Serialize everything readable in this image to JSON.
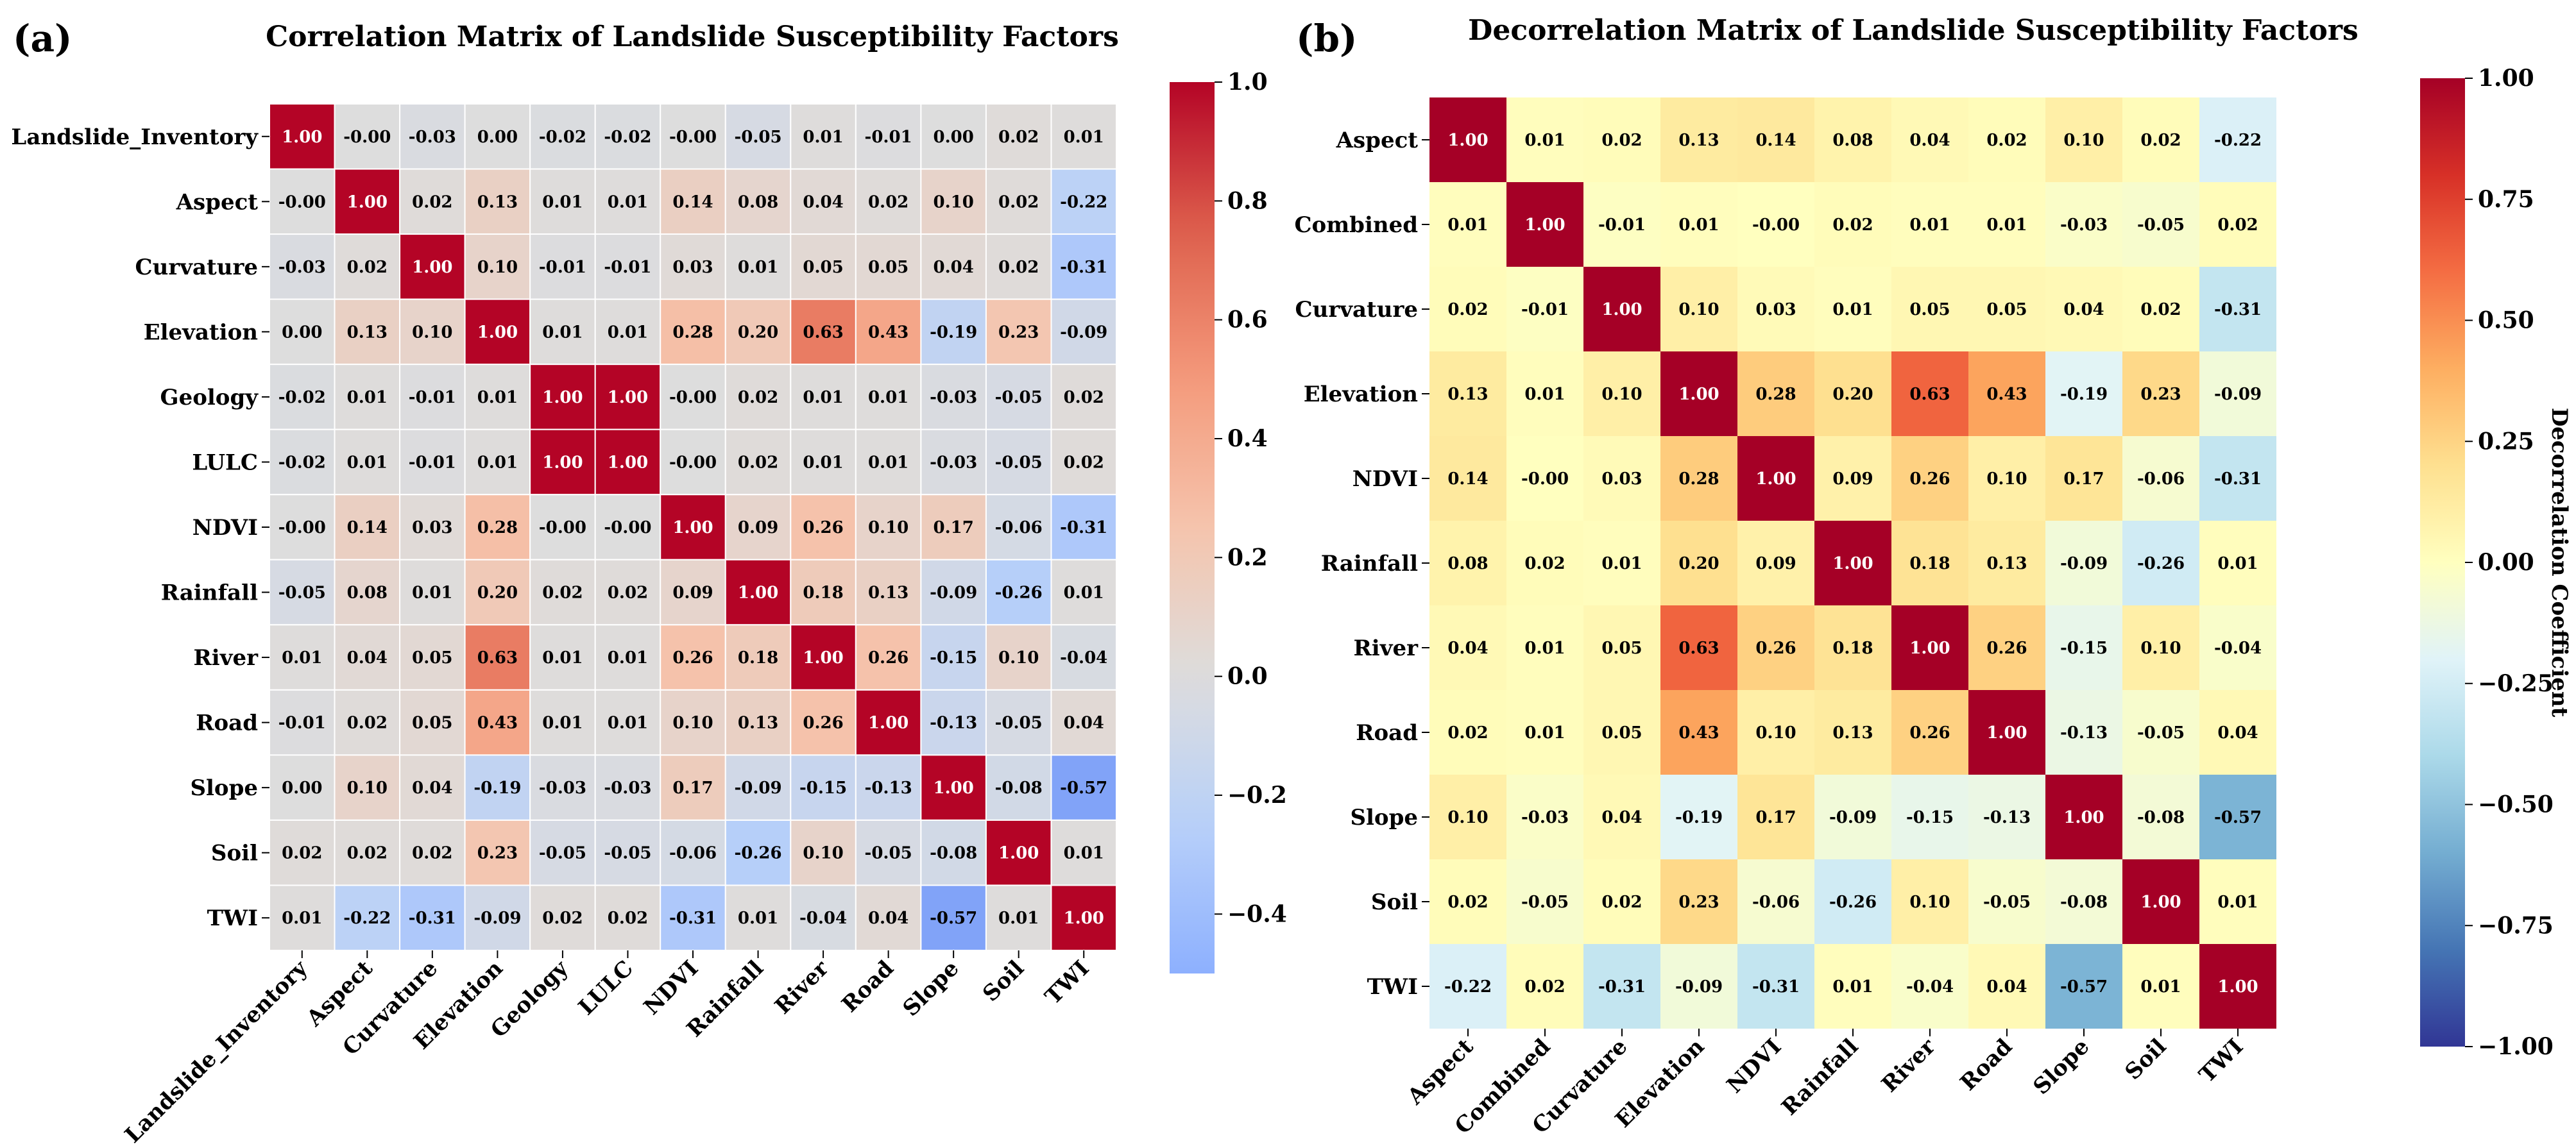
{
  "chart_data": [
    {
      "type": "heatmap",
      "panel_label": "(a)",
      "title": "Correlation Matrix of Landslide Susceptibility Factors",
      "colormap": "coolwarm",
      "vmin": -0.5,
      "vmax": 1.0,
      "colorbar_ticks": [
        "1.0",
        "0.8",
        "0.6",
        "0.4",
        "0.2",
        "0.0",
        "−0.2",
        "−0.4"
      ],
      "colorbar_tick_values": [
        1.0,
        0.8,
        0.6,
        0.4,
        0.2,
        0.0,
        -0.2,
        -0.4
      ],
      "colorbar_label": "",
      "labels": [
        "Landslide_Inventory",
        "Aspect",
        "Curvature",
        "Elevation",
        "Geology",
        "LULC",
        "NDVI",
        "Rainfall",
        "River",
        "Road",
        "Slope",
        "Soil",
        "TWI"
      ],
      "cell_text": [
        [
          "1.00",
          "-0.00",
          "-0.03",
          "0.00",
          "-0.02",
          "-0.02",
          "-0.00",
          "-0.05",
          "0.01",
          "-0.01",
          "0.00",
          "0.02",
          "0.01"
        ],
        [
          "-0.00",
          "1.00",
          "0.02",
          "0.13",
          "0.01",
          "0.01",
          "0.14",
          "0.08",
          "0.04",
          "0.02",
          "0.10",
          "0.02",
          "-0.22"
        ],
        [
          "-0.03",
          "0.02",
          "1.00",
          "0.10",
          "-0.01",
          "-0.01",
          "0.03",
          "0.01",
          "0.05",
          "0.05",
          "0.04",
          "0.02",
          "-0.31"
        ],
        [
          "0.00",
          "0.13",
          "0.10",
          "1.00",
          "0.01",
          "0.01",
          "0.28",
          "0.20",
          "0.63",
          "0.43",
          "-0.19",
          "0.23",
          "-0.09"
        ],
        [
          "-0.02",
          "0.01",
          "-0.01",
          "0.01",
          "1.00",
          "1.00",
          "-0.00",
          "0.02",
          "0.01",
          "0.01",
          "-0.03",
          "-0.05",
          "0.02"
        ],
        [
          "-0.02",
          "0.01",
          "-0.01",
          "0.01",
          "1.00",
          "1.00",
          "-0.00",
          "0.02",
          "0.01",
          "0.01",
          "-0.03",
          "-0.05",
          "0.02"
        ],
        [
          "-0.00",
          "0.14",
          "0.03",
          "0.28",
          "-0.00",
          "-0.00",
          "1.00",
          "0.09",
          "0.26",
          "0.10",
          "0.17",
          "-0.06",
          "-0.31"
        ],
        [
          "-0.05",
          "0.08",
          "0.01",
          "0.20",
          "0.02",
          "0.02",
          "0.09",
          "1.00",
          "0.18",
          "0.13",
          "-0.09",
          "-0.26",
          "0.01"
        ],
        [
          "0.01",
          "0.04",
          "0.05",
          "0.63",
          "0.01",
          "0.01",
          "0.26",
          "0.18",
          "1.00",
          "0.26",
          "-0.15",
          "0.10",
          "-0.04"
        ],
        [
          "-0.01",
          "0.02",
          "0.05",
          "0.43",
          "0.01",
          "0.01",
          "0.10",
          "0.13",
          "0.26",
          "1.00",
          "-0.13",
          "-0.05",
          "0.04"
        ],
        [
          "0.00",
          "0.10",
          "0.04",
          "-0.19",
          "-0.03",
          "-0.03",
          "0.17",
          "-0.09",
          "-0.15",
          "-0.13",
          "1.00",
          "-0.08",
          "-0.57"
        ],
        [
          "0.02",
          "0.02",
          "0.02",
          "0.23",
          "-0.05",
          "-0.05",
          "-0.06",
          "-0.26",
          "0.10",
          "-0.05",
          "-0.08",
          "1.00",
          "0.01"
        ],
        [
          "0.01",
          "-0.22",
          "-0.31",
          "-0.09",
          "0.02",
          "0.02",
          "-0.31",
          "0.01",
          "-0.04",
          "0.04",
          "-0.57",
          "0.01",
          "1.00"
        ]
      ]
    },
    {
      "type": "heatmap",
      "panel_label": "(b)",
      "title": "Decorrelation Matrix of Landslide Susceptibility Factors",
      "colormap": "RdYlBu_r",
      "vmin": -1.0,
      "vmax": 1.0,
      "colorbar_ticks": [
        "1.00",
        "0.75",
        "0.50",
        "0.25",
        "0.00",
        "−0.25",
        "−0.50",
        "−0.75",
        "−1.00"
      ],
      "colorbar_tick_values": [
        1.0,
        0.75,
        0.5,
        0.25,
        0.0,
        -0.25,
        -0.5,
        -0.75,
        -1.0
      ],
      "colorbar_label": "Decorrelation Coefficient",
      "labels": [
        "Aspect",
        "Combined",
        "Curvature",
        "Elevation",
        "NDVI",
        "Rainfall",
        "River",
        "Road",
        "Slope",
        "Soil",
        "TWI"
      ],
      "cell_text": [
        [
          "1.00",
          "0.01",
          "0.02",
          "0.13",
          "0.14",
          "0.08",
          "0.04",
          "0.02",
          "0.10",
          "0.02",
          "-0.22"
        ],
        [
          "0.01",
          "1.00",
          "-0.01",
          "0.01",
          "-0.00",
          "0.02",
          "0.01",
          "0.01",
          "-0.03",
          "-0.05",
          "0.02"
        ],
        [
          "0.02",
          "-0.01",
          "1.00",
          "0.10",
          "0.03",
          "0.01",
          "0.05",
          "0.05",
          "0.04",
          "0.02",
          "-0.31"
        ],
        [
          "0.13",
          "0.01",
          "0.10",
          "1.00",
          "0.28",
          "0.20",
          "0.63",
          "0.43",
          "-0.19",
          "0.23",
          "-0.09"
        ],
        [
          "0.14",
          "-0.00",
          "0.03",
          "0.28",
          "1.00",
          "0.09",
          "0.26",
          "0.10",
          "0.17",
          "-0.06",
          "-0.31"
        ],
        [
          "0.08",
          "0.02",
          "0.01",
          "0.20",
          "0.09",
          "1.00",
          "0.18",
          "0.13",
          "-0.09",
          "-0.26",
          "0.01"
        ],
        [
          "0.04",
          "0.01",
          "0.05",
          "0.63",
          "0.26",
          "0.18",
          "1.00",
          "0.26",
          "-0.15",
          "0.10",
          "-0.04"
        ],
        [
          "0.02",
          "0.01",
          "0.05",
          "0.43",
          "0.10",
          "0.13",
          "0.26",
          "1.00",
          "-0.13",
          "-0.05",
          "0.04"
        ],
        [
          "0.10",
          "-0.03",
          "0.04",
          "-0.19",
          "0.17",
          "-0.09",
          "-0.15",
          "-0.13",
          "1.00",
          "-0.08",
          "-0.57"
        ],
        [
          "0.02",
          "-0.05",
          "0.02",
          "0.23",
          "-0.06",
          "-0.26",
          "0.10",
          "-0.05",
          "-0.08",
          "1.00",
          "0.01"
        ],
        [
          "-0.22",
          "0.02",
          "-0.31",
          "-0.09",
          "-0.31",
          "0.01",
          "-0.04",
          "0.04",
          "-0.57",
          "0.01",
          "1.00"
        ]
      ]
    }
  ]
}
